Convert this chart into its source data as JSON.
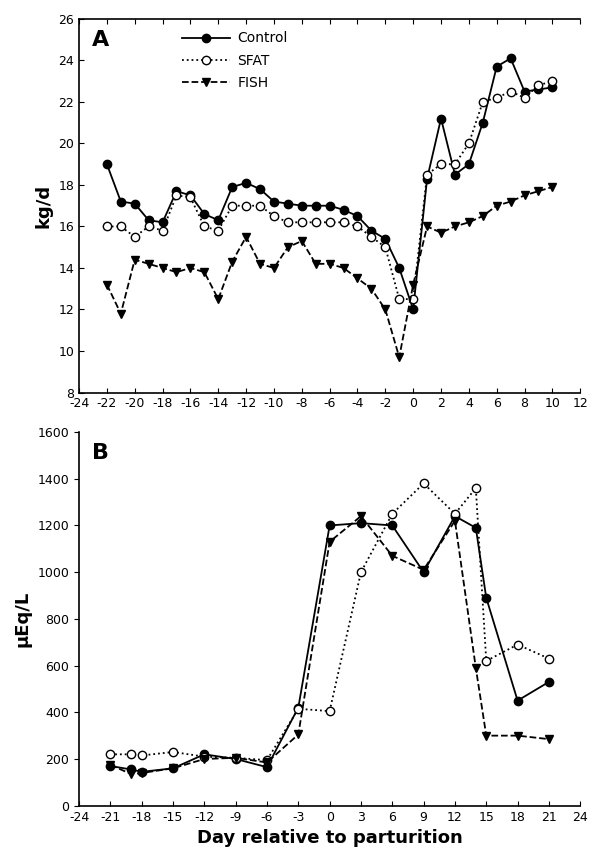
{
  "panel_A": {
    "title": "A",
    "ylabel": "kg/d",
    "xlim": [
      -24,
      12
    ],
    "ylim": [
      8,
      26
    ],
    "xticks": [
      -24,
      -22,
      -20,
      -18,
      -16,
      -14,
      -12,
      -10,
      -8,
      -6,
      -4,
      -2,
      0,
      2,
      4,
      6,
      8,
      10,
      12
    ],
    "xtick_labels": [
      "-24",
      "-22",
      "-20",
      "-18",
      "-16",
      "-14",
      "-12",
      "-10",
      "-8",
      "-6",
      "-4",
      "-2",
      "0",
      "2",
      "4",
      "6",
      "8",
      "10",
      "12"
    ],
    "yticks": [
      8,
      10,
      12,
      14,
      16,
      18,
      20,
      22,
      24,
      26
    ],
    "control": {
      "x": [
        -22,
        -21,
        -20,
        -19,
        -18,
        -17,
        -16,
        -15,
        -14,
        -13,
        -12,
        -11,
        -10,
        -9,
        -8,
        -7,
        -6,
        -5,
        -4,
        -3,
        -2,
        -1,
        0,
        1,
        2,
        3,
        4,
        5,
        6,
        7,
        8,
        9,
        10
      ],
      "y": [
        19.0,
        17.2,
        17.1,
        16.3,
        16.2,
        17.7,
        17.5,
        16.6,
        16.3,
        17.9,
        18.1,
        17.8,
        17.2,
        17.1,
        17.0,
        17.0,
        17.0,
        16.8,
        16.5,
        15.8,
        15.4,
        14.0,
        12.0,
        18.3,
        21.2,
        18.5,
        19.0,
        21.0,
        23.7,
        24.1,
        22.5,
        22.6,
        22.7
      ],
      "linestyle": "-",
      "marker": "o",
      "markerfacecolor": "black",
      "color": "black",
      "label": "Control"
    },
    "sfat": {
      "x": [
        -22,
        -21,
        -20,
        -19,
        -18,
        -17,
        -16,
        -15,
        -14,
        -13,
        -12,
        -11,
        -10,
        -9,
        -8,
        -7,
        -6,
        -5,
        -4,
        -3,
        -2,
        -1,
        0,
        1,
        2,
        3,
        4,
        5,
        6,
        7,
        8,
        9,
        10
      ],
      "y": [
        16.0,
        16.0,
        15.5,
        16.0,
        15.8,
        17.5,
        17.4,
        16.0,
        15.8,
        17.0,
        17.0,
        17.0,
        16.5,
        16.2,
        16.2,
        16.2,
        16.2,
        16.2,
        16.0,
        15.5,
        15.0,
        12.5,
        12.5,
        18.5,
        19.0,
        19.0,
        20.0,
        22.0,
        22.2,
        22.5,
        22.2,
        22.8,
        23.0
      ],
      "linestyle": ":",
      "marker": "o",
      "markerfacecolor": "white",
      "color": "black",
      "label": "SFAT"
    },
    "fish": {
      "x": [
        -22,
        -21,
        -20,
        -19,
        -18,
        -17,
        -16,
        -15,
        -14,
        -13,
        -12,
        -11,
        -10,
        -9,
        -8,
        -7,
        -6,
        -5,
        -4,
        -3,
        -2,
        -1,
        0,
        1,
        2,
        3,
        4,
        5,
        6,
        7,
        8,
        9,
        10
      ],
      "y": [
        13.2,
        11.8,
        14.4,
        14.2,
        14.0,
        13.8,
        14.0,
        13.8,
        12.5,
        14.3,
        15.5,
        14.2,
        14.0,
        15.0,
        15.3,
        14.2,
        14.2,
        14.0,
        13.5,
        13.0,
        12.0,
        9.7,
        13.2,
        16.0,
        15.7,
        16.0,
        16.2,
        16.5,
        17.0,
        17.2,
        17.5,
        17.7,
        17.9
      ],
      "linestyle": "--",
      "marker": "v",
      "markerfacecolor": "black",
      "color": "black",
      "label": "FISH"
    }
  },
  "panel_B": {
    "title": "B",
    "ylabel": "μEq/L",
    "xlabel": "Day relative to parturition",
    "xlim": [
      -24,
      24
    ],
    "ylim": [
      0,
      1600
    ],
    "xticks": [
      -24,
      -21,
      -18,
      -15,
      -12,
      -9,
      -6,
      -3,
      0,
      3,
      6,
      9,
      12,
      15,
      18,
      21,
      24
    ],
    "xtick_labels": [
      "-24",
      "-21",
      "-18",
      "-15",
      "-12",
      "-9",
      "-6",
      "-3",
      "0",
      "3",
      "6",
      "9",
      "12",
      "15",
      "18",
      "21",
      "24"
    ],
    "yticks": [
      0,
      200,
      400,
      600,
      800,
      1000,
      1200,
      1400,
      1600
    ],
    "control": {
      "x": [
        -21,
        -19,
        -18,
        -15,
        -12,
        -9,
        -6,
        -3,
        0,
        3,
        6,
        9,
        12,
        14,
        15,
        18,
        21
      ],
      "y": [
        170,
        155,
        145,
        160,
        220,
        200,
        165,
        420,
        1200,
        1210,
        1200,
        1000,
        1240,
        1190,
        890,
        450,
        530
      ],
      "linestyle": "-",
      "marker": "o",
      "markerfacecolor": "black",
      "color": "black",
      "label": "Control"
    },
    "sfat": {
      "x": [
        -21,
        -19,
        -18,
        -15,
        -12,
        -9,
        -6,
        -3,
        0,
        3,
        6,
        9,
        12,
        14,
        15,
        18,
        21
      ],
      "y": [
        220,
        220,
        215,
        230,
        210,
        205,
        195,
        415,
        405,
        1000,
        1250,
        1380,
        1250,
        1360,
        620,
        690,
        630
      ],
      "linestyle": ":",
      "marker": "o",
      "markerfacecolor": "white",
      "color": "black",
      "label": "SFAT"
    },
    "fish": {
      "x": [
        -21,
        -19,
        -18,
        -15,
        -12,
        -9,
        -6,
        -3,
        0,
        3,
        6,
        9,
        12,
        14,
        15,
        18,
        21
      ],
      "y": [
        175,
        135,
        140,
        160,
        200,
        205,
        185,
        305,
        1130,
        1240,
        1070,
        1010,
        1220,
        590,
        300,
        300,
        285
      ],
      "linestyle": "--",
      "marker": "v",
      "markerfacecolor": "black",
      "color": "black",
      "label": "FISH"
    }
  },
  "figure_bgcolor": "white"
}
